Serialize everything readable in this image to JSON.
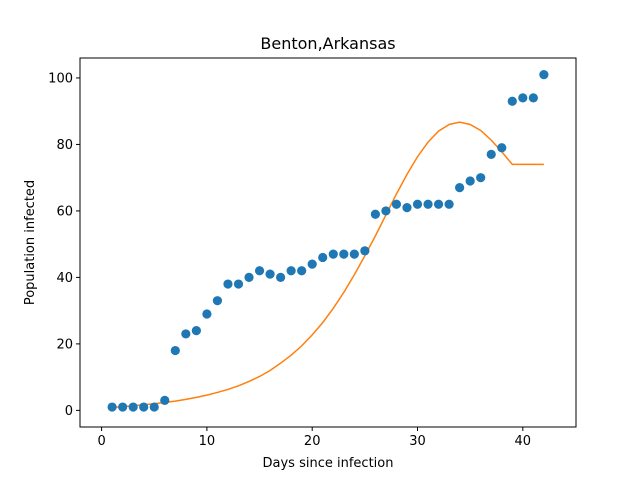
{
  "chart_data": {
    "type": "scatter",
    "title": "Benton,Arkansas",
    "xlabel": "Days since infection",
    "ylabel": "Population infected",
    "xlim": [
      -2.05,
      45.05
    ],
    "ylim": [
      -5,
      106
    ],
    "xticks": [
      0,
      10,
      20,
      30,
      40
    ],
    "yticks": [
      0,
      20,
      40,
      60,
      80,
      100
    ],
    "grid": false,
    "legend": "none",
    "colors": {
      "scatter": "#1f77b4",
      "line": "#ff7f0e"
    },
    "series": [
      {
        "type": "scatter",
        "x": [
          1,
          2,
          3,
          4,
          5,
          6,
          7,
          8,
          9,
          10,
          11,
          12,
          13,
          14,
          15,
          16,
          17,
          18,
          19,
          20,
          21,
          22,
          23,
          24,
          25,
          26,
          27,
          28,
          29,
          30,
          31,
          32,
          33,
          34,
          35,
          36,
          37,
          38,
          39,
          40,
          41,
          42
        ],
        "y": [
          1,
          1,
          1,
          1,
          1,
          3,
          18,
          23,
          24,
          29,
          33,
          38,
          38,
          40,
          42,
          41,
          40,
          42,
          42,
          44,
          46,
          47,
          47,
          47,
          48,
          59,
          60,
          62,
          61,
          62,
          62,
          62,
          62,
          67,
          69,
          70,
          77,
          79,
          93,
          94,
          94,
          101
        ]
      },
      {
        "type": "line",
        "x": [
          1,
          2,
          3,
          4,
          5,
          6,
          7,
          8,
          9,
          10,
          11,
          12,
          13,
          14,
          15,
          16,
          17,
          18,
          19,
          20,
          21,
          22,
          23,
          24,
          25,
          26,
          27,
          28,
          29,
          30,
          31,
          32,
          33,
          34,
          35,
          36,
          37,
          38,
          39,
          40,
          41,
          42
        ],
        "y": [
          0.9,
          1.1,
          1.4,
          1.7,
          2.0,
          2.4,
          2.8,
          3.3,
          3.9,
          4.6,
          5.4,
          6.3,
          7.4,
          8.7,
          10.2,
          12.0,
          14.2,
          16.6,
          19.4,
          22.7,
          26.4,
          30.7,
          35.5,
          40.8,
          46.5,
          52.5,
          58.8,
          65.1,
          71.0,
          76.3,
          80.7,
          84.0,
          86.0,
          86.7,
          86.0,
          84.2,
          81.3,
          77.8,
          74.0,
          74.0,
          74.0,
          74.0
        ]
      }
    ]
  }
}
